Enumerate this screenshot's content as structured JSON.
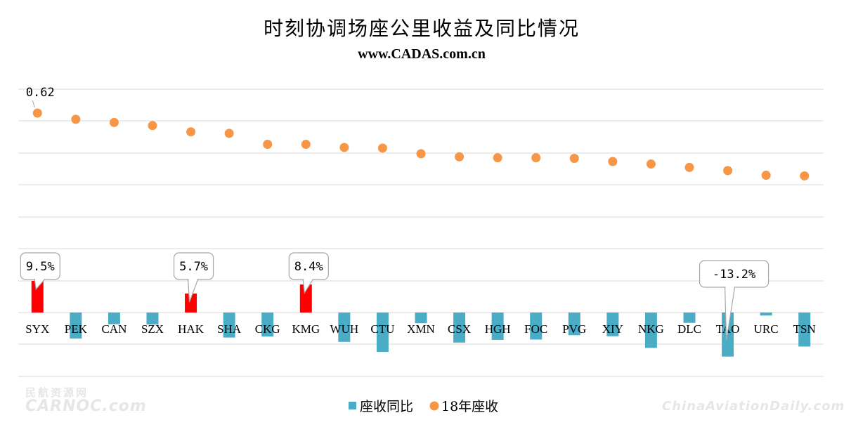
{
  "watermarks": {
    "left_top": "民航资源网",
    "left_bottom": "CARNOC.com",
    "right": "ChinaAviationDaily.com"
  },
  "chart_data": {
    "type": "bar",
    "title": "时刻协调场座公里收益及同比情况",
    "subtitle": "www.CADAS.com.cn",
    "categories": [
      "SYX",
      "PEK",
      "CAN",
      "SZX",
      "HAK",
      "SHA",
      "CKG",
      "KMG",
      "WUH",
      "CTU",
      "XMN",
      "CSX",
      "HGH",
      "FOC",
      "PVG",
      "XIY",
      "NKG",
      "DLC",
      "TAO",
      "URC",
      "TSN"
    ],
    "series": [
      {
        "name": "座收同比",
        "chart_type": "bar",
        "color": "#4bacc6",
        "highlight_color": "#ff0000",
        "values": [
          9.5,
          -7.8,
          -3.5,
          -3.6,
          5.7,
          -7.5,
          -7.2,
          8.4,
          -8.8,
          -11.8,
          -3.2,
          -9.0,
          -8.2,
          -8.1,
          -6.8,
          -7.1,
          -10.6,
          -3.1,
          -13.2,
          -0.9,
          -10.2
        ],
        "unit": "%",
        "data_labels": [
          {
            "category": "SYX",
            "text": "9.5%"
          },
          {
            "category": "HAK",
            "text": "5.7%"
          },
          {
            "category": "KMG",
            "text": "8.4%"
          },
          {
            "category": "TAO",
            "text": "-13.2%"
          }
        ]
      },
      {
        "name": "18年座收",
        "chart_type": "scatter",
        "color": "#f79646",
        "values": [
          0.62,
          0.6,
          0.59,
          0.58,
          0.56,
          0.555,
          0.52,
          0.52,
          0.51,
          0.508,
          0.49,
          0.48,
          0.477,
          0.477,
          0.475,
          0.465,
          0.457,
          0.446,
          0.436,
          0.421,
          0.419
        ],
        "data_labels": [
          {
            "category": "SYX",
            "text": "0.62"
          }
        ]
      }
    ],
    "legend_position": "bottom",
    "grid": true
  }
}
